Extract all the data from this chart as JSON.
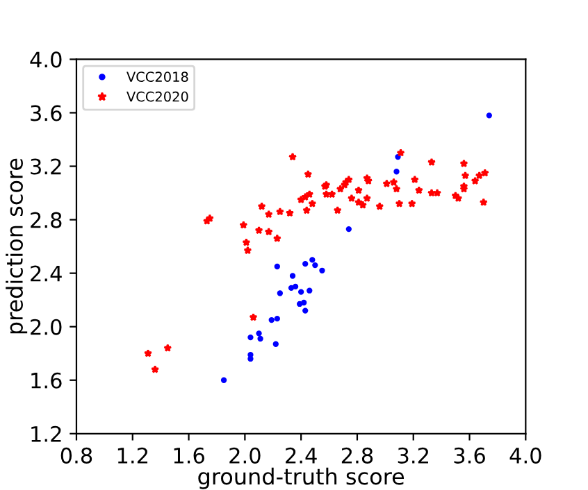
{
  "chart_data": {
    "type": "scatter",
    "xlabel": "ground-truth score",
    "ylabel": "prediction score",
    "xlim": [
      0.8,
      4.0
    ],
    "ylim": [
      1.2,
      4.0
    ],
    "xticks": [
      0.8,
      1.2,
      1.6,
      {
        "value": 2,
        "label": "2.0"
      },
      2.4,
      2.8,
      3.2,
      3.6,
      {
        "value": 4,
        "label": "4.0"
      }
    ],
    "yticks": [
      1.2,
      1.6,
      {
        "value": 2,
        "label": "2.0"
      },
      2.4,
      2.8,
      3.2,
      3.6,
      {
        "value": 4,
        "label": "4.0"
      }
    ],
    "legend": "top left",
    "grid": false,
    "series": [
      {
        "name": "VCC2018",
        "color": "#0000ff",
        "marker": "circle",
        "x": [
          1.85,
          2.04,
          2.04,
          2.04,
          2.1,
          2.11,
          2.19,
          2.23,
          2.22,
          2.23,
          2.25,
          2.33,
          2.34,
          2.36,
          2.4,
          2.39,
          2.42,
          2.43,
          2.43,
          2.48,
          2.5,
          2.46,
          2.55,
          2.74,
          3.09,
          3.08,
          3.74
        ],
        "values": [
          1.6,
          1.92,
          1.79,
          1.76,
          1.95,
          1.91,
          2.05,
          2.06,
          1.87,
          2.45,
          2.25,
          2.29,
          2.38,
          2.3,
          2.26,
          2.17,
          2.18,
          2.12,
          2.47,
          2.5,
          2.46,
          2.27,
          2.42,
          2.73,
          3.27,
          3.16,
          3.58
        ]
      },
      {
        "name": "VCC2020",
        "color": "#ff0000",
        "marker": "star",
        "x": [
          1.31,
          1.36,
          1.45,
          1.73,
          1.75,
          1.99,
          2.01,
          2.02,
          2.06,
          2.1,
          2.12,
          2.17,
          2.17,
          2.23,
          2.25,
          2.32,
          2.34,
          2.4,
          2.43,
          2.45,
          2.46,
          2.48,
          2.44,
          2.57,
          2.58,
          2.58,
          2.62,
          2.66,
          2.68,
          2.71,
          2.72,
          2.74,
          2.76,
          2.81,
          2.81,
          2.84,
          2.87,
          2.87,
          2.88,
          2.96,
          3.01,
          3.06,
          3.08,
          3.1,
          3.11,
          3.19,
          3.21,
          3.24,
          3.33,
          3.33,
          3.37,
          3.5,
          3.52,
          3.56,
          3.56,
          3.56,
          3.57,
          3.64,
          3.67,
          3.7,
          3.71
        ],
        "values": [
          1.8,
          1.68,
          1.84,
          2.79,
          2.81,
          2.76,
          2.63,
          2.57,
          2.07,
          2.72,
          2.9,
          2.71,
          2.84,
          2.66,
          2.86,
          2.85,
          3.27,
          2.95,
          2.97,
          3.14,
          2.99,
          2.92,
          2.87,
          3.05,
          3.06,
          2.99,
          2.99,
          2.87,
          3.03,
          3.06,
          3.08,
          3.1,
          2.96,
          3.02,
          2.93,
          2.91,
          2.96,
          3.11,
          3.09,
          2.9,
          3.07,
          3.08,
          3.03,
          2.92,
          3.3,
          2.92,
          3.1,
          3.02,
          3.23,
          3.0,
          3.0,
          2.98,
          2.96,
          3.03,
          3.05,
          3.22,
          3.13,
          3.09,
          3.13,
          2.93,
          3.15
        ]
      }
    ]
  }
}
